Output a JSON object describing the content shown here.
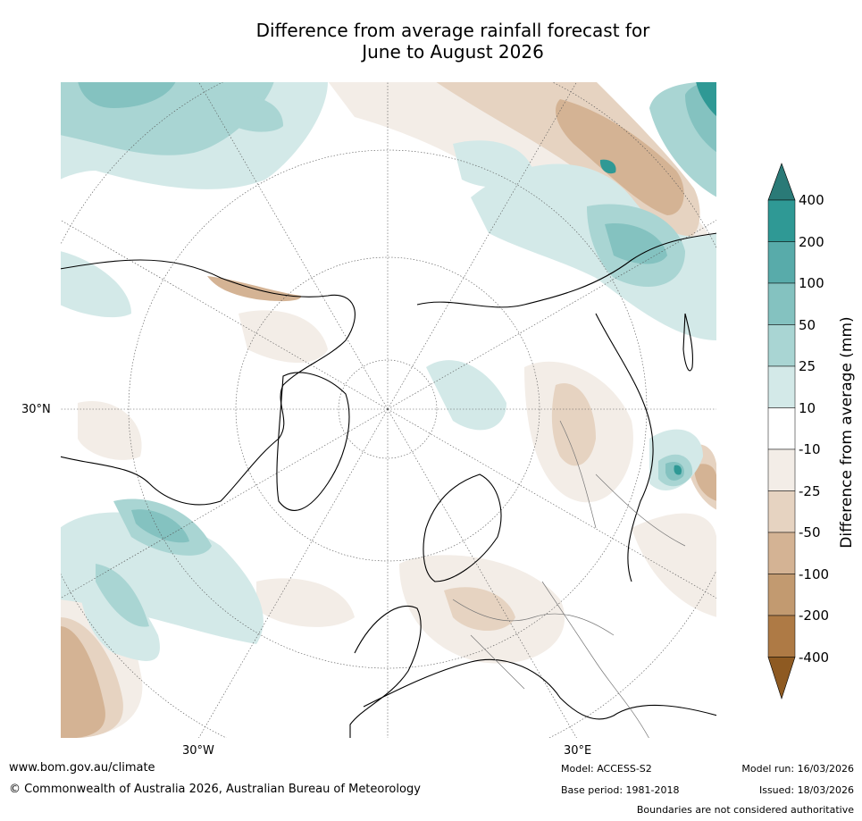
{
  "title_line1": "Difference from average rainfall forecast for",
  "title_line2": "June to August 2026",
  "axis": {
    "lat_label": "30°N",
    "lon_left": "30°W",
    "lon_right": "30°E"
  },
  "colorbar": {
    "label": "Difference from average (mm)",
    "ticks": [
      "400",
      "200",
      "100",
      "50",
      "25",
      "10",
      "-10",
      "-25",
      "-50",
      "-100",
      "-200",
      "-400"
    ],
    "colors": {
      "over": "#2a7a77",
      "c400": "#2f9995",
      "c200": "#58abaa",
      "c100": "#84c2c0",
      "c50": "#a9d5d3",
      "c25": "#d3e9e8",
      "c10": "#ffffff",
      "cm10": "#f3ede7",
      "cm25": "#e6d3c1",
      "cm50": "#d4b394",
      "cm100": "#c29a70",
      "cm200": "#ae7a45",
      "under": "#8e5a22"
    }
  },
  "footer": {
    "website": "www.bom.gov.au/climate",
    "copyright": "© Commonwealth of Australia 2026, Australian Bureau of Meteorology",
    "model": "Model: ACCESS-S2",
    "base_period": "Base period: 1981-2018",
    "model_run": "Model run: 16/03/2026",
    "issued": "Issued: 18/03/2026",
    "boundaries": "Boundaries are not considered authoritative"
  }
}
